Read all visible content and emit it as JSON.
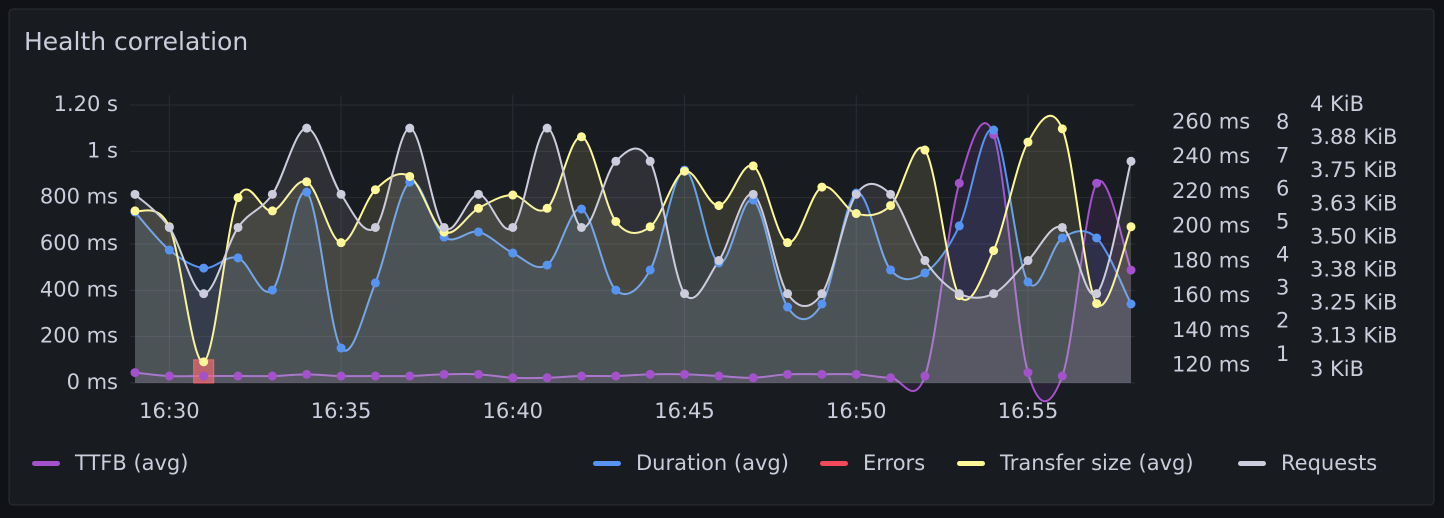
{
  "chart_data": {
    "type": "line",
    "title": "Health correlation",
    "x": [
      "16:29",
      "16:30",
      "16:31",
      "16:32",
      "16:33",
      "16:34",
      "16:35",
      "16:36",
      "16:37",
      "16:38",
      "16:39",
      "16:40",
      "16:41",
      "16:42",
      "16:43",
      "16:44",
      "16:45",
      "16:46",
      "16:47",
      "16:48",
      "16:49",
      "16:50",
      "16:51",
      "16:52",
      "16:53",
      "16:54",
      "16:55",
      "16:56",
      "16:57",
      "16:58"
    ],
    "xlim": [
      "16:29",
      "16:58"
    ],
    "xticks": [
      "16:30",
      "16:35",
      "16:40",
      "16:45",
      "16:50",
      "16:55"
    ],
    "ylim": [
      0,
      1200
    ],
    "yticks": [
      {
        "value": 0,
        "label": "0 ms"
      },
      {
        "value": 200,
        "label": "200 ms"
      },
      {
        "value": 400,
        "label": "400 ms"
      },
      {
        "value": 600,
        "label": "600 ms"
      },
      {
        "value": 800,
        "label": "800 ms"
      },
      {
        "value": 1000,
        "label": "1 s"
      },
      {
        "value": 1200,
        "label": "1.20 s"
      }
    ],
    "y2lim": [
      110,
      270
    ],
    "y2ticks": [
      {
        "value": 120,
        "label": "120 ms"
      },
      {
        "value": 140,
        "label": "140 ms"
      },
      {
        "value": 160,
        "label": "160 ms"
      },
      {
        "value": 180,
        "label": "180 ms"
      },
      {
        "value": 200,
        "label": "200 ms"
      },
      {
        "value": 220,
        "label": "220 ms"
      },
      {
        "value": 240,
        "label": "240 ms"
      },
      {
        "value": 260,
        "label": "260 ms"
      }
    ],
    "y3lim": [
      0.3,
      8.7
    ],
    "y3ticks": [
      1,
      2,
      3,
      4,
      5,
      6,
      7,
      8
    ],
    "y4lim": [
      2.95,
      4
    ],
    "y4ticks": [
      {
        "value": 3,
        "label": "3 KiB"
      },
      {
        "value": 3.125,
        "label": "3.13 KiB"
      },
      {
        "value": 3.25,
        "label": "3.25 KiB"
      },
      {
        "value": 3.375,
        "label": "3.38 KiB"
      },
      {
        "value": 3.5,
        "label": "3.50 KiB"
      },
      {
        "value": 3.625,
        "label": "3.63 KiB"
      },
      {
        "value": 3.75,
        "label": "3.75 KiB"
      },
      {
        "value": 3.875,
        "label": "3.88 KiB"
      },
      {
        "value": 4,
        "label": "4 KiB"
      }
    ],
    "grid": true,
    "series": [
      {
        "name": "TTFB (avg)",
        "color": "#a352cc",
        "axis": "y2",
        "style": "line",
        "values": [
          116,
          114,
          114,
          114,
          114,
          115,
          114,
          114,
          114,
          115,
          115,
          113,
          113,
          114,
          114,
          115,
          115,
          114,
          113,
          115,
          115,
          115,
          113,
          114,
          225,
          253,
          116,
          114,
          225,
          175
        ]
      },
      {
        "name": "Duration (avg)",
        "color": "#5794f2",
        "axis": "y",
        "style": "line",
        "values": [
          738,
          574,
          496,
          540,
          401,
          824,
          151,
          432,
          867,
          630,
          652,
          561,
          509,
          751,
          401,
          488,
          919,
          518,
          790,
          328,
          341,
          820,
          488,
          475,
          678,
          1092,
          436,
          626,
          626,
          341
        ]
      },
      {
        "name": "Errors",
        "color": "#f2495c",
        "axis": "y3",
        "style": "bars",
        "values": [
          null,
          null,
          1,
          null,
          null,
          null,
          null,
          null,
          null,
          null,
          null,
          null,
          null,
          null,
          null,
          null,
          null,
          null,
          null,
          null,
          null,
          null,
          null,
          null,
          null,
          null,
          null,
          null,
          null,
          null
        ]
      },
      {
        "name": "Transfer size (avg)",
        "color": "#fff899",
        "axis": "y4",
        "style": "line",
        "values": [
          3.6,
          3.54,
          3.03,
          3.65,
          3.6,
          3.71,
          3.48,
          3.68,
          3.73,
          3.52,
          3.61,
          3.66,
          3.61,
          3.88,
          3.56,
          3.54,
          3.75,
          3.62,
          3.77,
          3.48,
          3.69,
          3.59,
          3.62,
          3.83,
          3.28,
          3.45,
          3.86,
          3.91,
          3.25,
          3.54
        ]
      },
      {
        "name": "Requests",
        "color": "#ccccdc",
        "axis": "y3",
        "style": "line",
        "values": [
          6,
          5,
          3,
          5,
          6,
          8,
          6,
          5,
          8,
          5,
          6,
          5,
          8,
          5,
          7,
          7,
          3,
          4,
          6,
          3,
          3,
          6,
          6,
          4,
          3,
          3,
          4,
          5,
          3,
          7
        ]
      }
    ]
  }
}
